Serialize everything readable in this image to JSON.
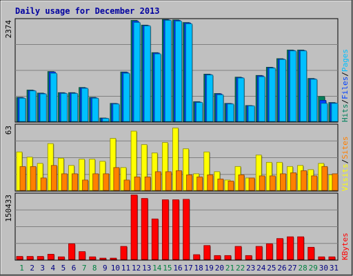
{
  "chart_data": {
    "type": "bar",
    "title": "Daily usage for December 2013",
    "categories": [
      "1",
      "2",
      "3",
      "4",
      "5",
      "6",
      "7",
      "8",
      "9",
      "10",
      "11",
      "12",
      "13",
      "14",
      "15",
      "16",
      "17",
      "18",
      "19",
      "20",
      "21",
      "22",
      "23",
      "24",
      "25",
      "26",
      "27",
      "28",
      "29",
      "30",
      "31"
    ],
    "weekend_days": [
      "1",
      "7",
      "8",
      "14",
      "15",
      "21",
      "22",
      "28",
      "29"
    ],
    "panels": [
      {
        "id": "hits_files_pages",
        "max_label": "2374",
        "ylim": [
          0,
          2374
        ],
        "series": [
          {
            "name": "Hits",
            "color": "#00805c",
            "values": [
              560,
              730,
              660,
              1160,
              670,
              670,
              790,
              560,
              80,
              420,
              1150,
              2350,
              2240,
              1600,
              2370,
              2360,
              2300,
              460,
              1100,
              650,
              420,
              1030,
              370,
              1070,
              1260,
              1460,
              1660,
              1660,
              1000,
              580,
              440
            ]
          },
          {
            "name": "Files",
            "color": "#0040ff",
            "values": [
              550,
              720,
              650,
              1150,
              660,
              660,
              780,
              550,
              75,
              415,
              1140,
              2330,
              2230,
              1590,
              2360,
              2350,
              2290,
              450,
              1090,
              640,
              415,
              1020,
              365,
              1060,
              1250,
              1450,
              1650,
              1650,
              990,
              490,
              430
            ]
          },
          {
            "name": "Pages",
            "color": "#00c0ff",
            "values": [
              540,
              710,
              640,
              1120,
              650,
              650,
              770,
              540,
              70,
              405,
              1120,
              2300,
              2220,
              1570,
              2350,
              2330,
              2270,
              440,
              1080,
              620,
              405,
              1010,
              360,
              1040,
              1240,
              1440,
              1640,
              1640,
              980,
              420,
              420
            ]
          }
        ]
      },
      {
        "id": "visits_sites",
        "max_label": "63",
        "ylim": [
          0,
          63
        ],
        "series": [
          {
            "name": "Visits",
            "color": "#ffff00",
            "values": [
              37,
              32,
              26,
              45,
              31,
              24,
              30,
              30,
              28,
              50,
              22,
              57,
              44,
              36,
              46,
              60,
              40,
              16,
              37,
              18,
              10,
              23,
              12,
              34,
              27,
              27,
              23,
              24,
              20,
              26,
              15
            ]
          },
          {
            "name": "Sites",
            "color": "#ff8000",
            "values": [
              23,
              23,
              12,
              24,
              16,
              16,
              10,
              16,
              16,
              22,
              10,
              13,
              13,
              18,
              18,
              19,
              15,
              13,
              15,
              11,
              9,
              15,
              12,
              14,
              14,
              16,
              17,
              19,
              14,
              23,
              16
            ]
          }
        ]
      },
      {
        "id": "kbytes",
        "max_label": "150433",
        "ylim": [
          0,
          150433
        ],
        "series": [
          {
            "name": "KBytes",
            "color": "#ff0000",
            "values": [
              7000,
              7000,
              7000,
              12000,
              6000,
              36000,
              18000,
              6000,
              3000,
              3000,
              30000,
              148000,
              140000,
              93000,
              137000,
              137000,
              138000,
              11000,
              32000,
              9000,
              9000,
              30000,
              9000,
              30000,
              36000,
              48000,
              52000,
              52000,
              28000,
              6000,
              6000
            ]
          }
        ]
      }
    ],
    "legend": {
      "top": [
        {
          "text": "Hits",
          "color": "#00805c"
        },
        {
          "text": "/",
          "color": "#000000"
        },
        {
          "text": "Files",
          "color": "#0040ff"
        },
        {
          "text": "/",
          "color": "#000000"
        },
        {
          "text": "Pages",
          "color": "#00c0ff"
        }
      ],
      "middle": [
        {
          "text": "Visits",
          "color": "#ffff00"
        },
        {
          "text": "/",
          "color": "#000000"
        },
        {
          "text": "Sites",
          "color": "#ff8000"
        }
      ],
      "bottom": [
        {
          "text": "KBytes",
          "color": "#ff0000"
        }
      ]
    }
  }
}
